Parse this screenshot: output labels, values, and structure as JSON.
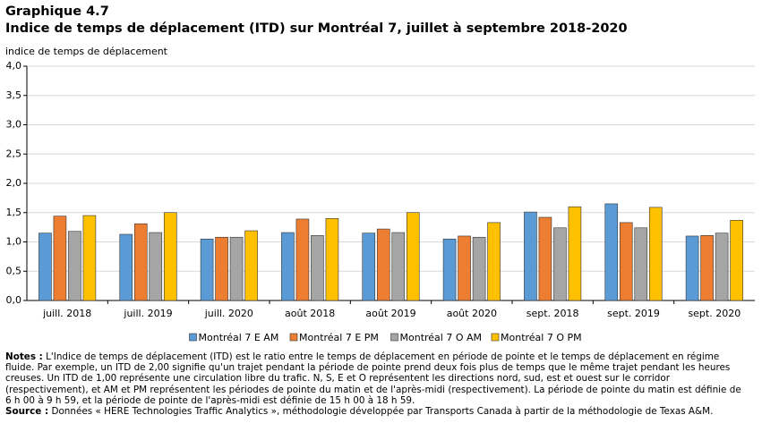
{
  "chart_data": {
    "type": "bar",
    "kicker": "Graphique 4.7",
    "title": "Indice de temps de déplacement (ITD) sur Montréal 7, juillet à septembre 2018-2020",
    "y_label": "indice de temps de déplacement",
    "categories": [
      "juill. 2018",
      "juill. 2019",
      "juill. 2020",
      "août 2018",
      "août 2019",
      "août 2020",
      "sept. 2018",
      "sept. 2019",
      "sept. 2020"
    ],
    "series": [
      {
        "name": "Montréal 7 E AM",
        "color": "#5b9bd5",
        "values": [
          1.15,
          1.13,
          1.05,
          1.16,
          1.15,
          1.05,
          1.51,
          1.65,
          1.1
        ]
      },
      {
        "name": "Montréal 7 E PM",
        "color": "#ed7d31",
        "values": [
          1.44,
          1.31,
          1.08,
          1.39,
          1.22,
          1.1,
          1.42,
          1.33,
          1.11
        ]
      },
      {
        "name": "Montréal 7 O AM",
        "color": "#a5a5a5",
        "values": [
          1.18,
          1.16,
          1.08,
          1.11,
          1.16,
          1.08,
          1.24,
          1.24,
          1.15
        ]
      },
      {
        "name": "Montréal 7 O PM",
        "color": "#ffc000",
        "values": [
          1.45,
          1.5,
          1.19,
          1.4,
          1.5,
          1.33,
          1.6,
          1.59,
          1.37
        ]
      }
    ],
    "ylim": [
      0,
      4
    ],
    "yticks": [
      {
        "value": 0,
        "label": "0,0"
      },
      {
        "value": 0.5,
        "label": "0,5"
      },
      {
        "value": 1,
        "label": "1,0"
      },
      {
        "value": 1.5,
        "label": "1,5"
      },
      {
        "value": 2,
        "label": "2,0"
      },
      {
        "value": 2.5,
        "label": "2,5"
      },
      {
        "value": 3,
        "label": "3,0"
      },
      {
        "value": 3.5,
        "label": "3,5"
      },
      {
        "value": 4,
        "label": "4,0"
      }
    ],
    "grid": true,
    "notes": {
      "label": "Notes :",
      "text": "L'Indice de temps de déplacement (ITD) est le ratio entre le temps de déplacement en période de pointe et le temps de déplacement en régime fluide. Par exemple, un ITD de 2,00 signifie qu'un trajet pendant la période de pointe prend deux fois plus de temps que le même trajet pendant les heures creuses. Un ITD de 1,00 représente une circulation libre du trafic. N, S, E et O représentent les directions nord, sud, est et ouest sur le corridor (respectivement), et AM et PM représentent les périodes de pointe du matin et de l'après-midi (respectivement). La période de pointe du matin est définie de 6 h 00 à 9 h 59, et la période de pointe de l'après-midi est définie de 15 h 00 à 18 h 59."
    },
    "source": {
      "label": "Source :",
      "text": "Données « HERE Technologies Traffic Analytics », méthodologie développée par Transports Canada à partir de la méthodologie de Texas A&M."
    }
  }
}
